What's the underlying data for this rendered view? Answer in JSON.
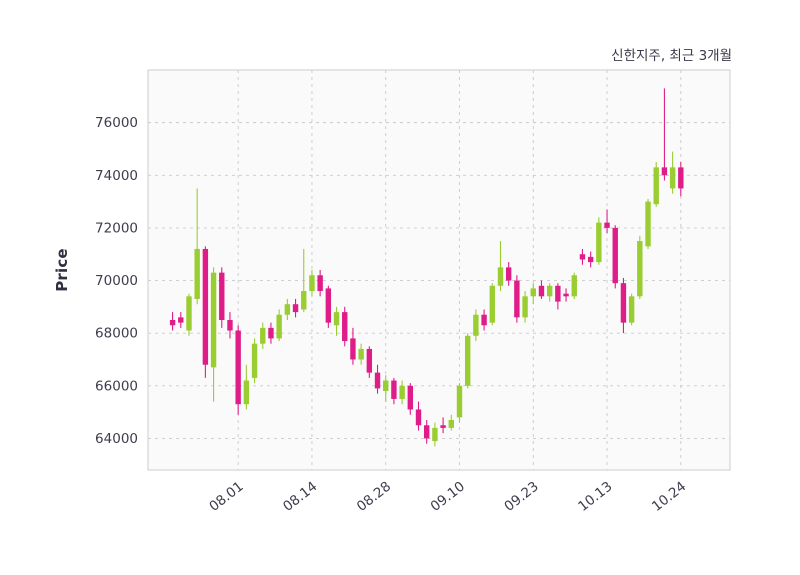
{
  "title": "신한지주, 최근 3개월",
  "ylabel": "Price",
  "chart_data": {
    "type": "candlestick",
    "title": "신한지주, 최근 3개월",
    "xlabel": "",
    "ylabel": "Price",
    "legend": "none",
    "grid": "dashed",
    "up_color": "#9acd32",
    "down_color": "#df1d88",
    "plot_bg": "#fafafa",
    "border_color": "#d4d4d4",
    "grid_color": "#c9c9c9",
    "tick_color": "#3d3d4d",
    "ylim": [
      62800,
      78000
    ],
    "yticks": [
      64000,
      66000,
      68000,
      70000,
      72000,
      74000,
      76000
    ],
    "xlim": [
      -3,
      68
    ],
    "xticks": [
      {
        "index": 8,
        "label": "08.01"
      },
      {
        "index": 17,
        "label": "08.14"
      },
      {
        "index": 26,
        "label": "08.28"
      },
      {
        "index": 35,
        "label": "09.10"
      },
      {
        "index": 44,
        "label": "09.23"
      },
      {
        "index": 53,
        "label": "10.13"
      },
      {
        "index": 62,
        "label": "10.24"
      }
    ],
    "candles_format": [
      "open",
      "high",
      "low",
      "close"
    ],
    "candles": [
      [
        68500,
        68800,
        68100,
        68300
      ],
      [
        68600,
        68800,
        68200,
        68400
      ],
      [
        68100,
        69500,
        67900,
        69400
      ],
      [
        69300,
        73500,
        69100,
        71200
      ],
      [
        71200,
        71300,
        66300,
        66800
      ],
      [
        66700,
        70500,
        65400,
        70300
      ],
      [
        70300,
        70500,
        68200,
        68500
      ],
      [
        68500,
        68800,
        67800,
        68100
      ],
      [
        68100,
        68300,
        64900,
        65300
      ],
      [
        65300,
        66800,
        65100,
        66200
      ],
      [
        66300,
        67800,
        66100,
        67600
      ],
      [
        67600,
        68400,
        67400,
        68200
      ],
      [
        68200,
        68400,
        67600,
        67800
      ],
      [
        67800,
        68900,
        67700,
        68700
      ],
      [
        68700,
        69300,
        68500,
        69100
      ],
      [
        69100,
        69300,
        68600,
        68800
      ],
      [
        68900,
        71200,
        68800,
        69600
      ],
      [
        69600,
        70400,
        69400,
        70200
      ],
      [
        70200,
        70400,
        69400,
        69600
      ],
      [
        69700,
        69800,
        68200,
        68400
      ],
      [
        68300,
        69000,
        67900,
        68800
      ],
      [
        68800,
        69000,
        67500,
        67700
      ],
      [
        67800,
        68200,
        66800,
        67000
      ],
      [
        67000,
        67600,
        66800,
        67400
      ],
      [
        67400,
        67500,
        66300,
        66500
      ],
      [
        66500,
        66800,
        65700,
        65900
      ],
      [
        65800,
        66400,
        65400,
        66200
      ],
      [
        66200,
        66300,
        65300,
        65500
      ],
      [
        65500,
        66200,
        65300,
        66000
      ],
      [
        66000,
        66100,
        64900,
        65100
      ],
      [
        65100,
        65400,
        64300,
        64500
      ],
      [
        64500,
        64700,
        63800,
        64000
      ],
      [
        63900,
        64600,
        63700,
        64400
      ],
      [
        64500,
        64800,
        64200,
        64400
      ],
      [
        64400,
        64900,
        64300,
        64700
      ],
      [
        64800,
        66100,
        64600,
        66000
      ],
      [
        66000,
        68000,
        65900,
        67900
      ],
      [
        67900,
        68900,
        67700,
        68700
      ],
      [
        68700,
        68900,
        68100,
        68300
      ],
      [
        68400,
        69900,
        68300,
        69800
      ],
      [
        69800,
        71500,
        69600,
        70500
      ],
      [
        70500,
        70700,
        69800,
        70000
      ],
      [
        70000,
        70200,
        68400,
        68600
      ],
      [
        68600,
        69600,
        68400,
        69400
      ],
      [
        69400,
        69900,
        69100,
        69700
      ],
      [
        69800,
        70000,
        69300,
        69400
      ],
      [
        69400,
        69900,
        69200,
        69800
      ],
      [
        69800,
        69900,
        68900,
        69200
      ],
      [
        69500,
        69700,
        69200,
        69400
      ],
      [
        69400,
        70300,
        69300,
        70200
      ],
      [
        71000,
        71200,
        70600,
        70800
      ],
      [
        70900,
        71100,
        70500,
        70700
      ],
      [
        70700,
        72400,
        70600,
        72200
      ],
      [
        72200,
        72700,
        71800,
        72000
      ],
      [
        72000,
        72100,
        69700,
        69900
      ],
      [
        69900,
        70100,
        68000,
        68400
      ],
      [
        68400,
        69500,
        68300,
        69400
      ],
      [
        69400,
        71700,
        69300,
        71500
      ],
      [
        71300,
        73100,
        71200,
        73000
      ],
      [
        72900,
        74500,
        72800,
        74300
      ],
      [
        74300,
        77300,
        73800,
        74000
      ],
      [
        73500,
        74900,
        73300,
        74300
      ],
      [
        74300,
        74500,
        73200,
        73500
      ]
    ]
  }
}
